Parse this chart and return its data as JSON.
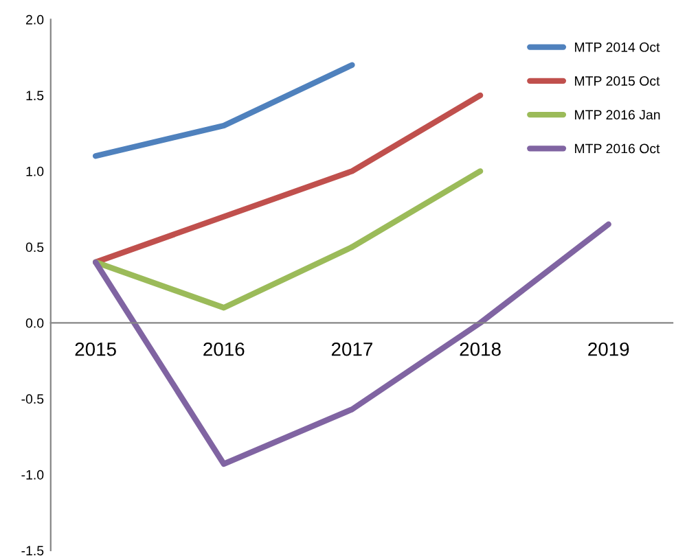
{
  "chart_data": {
    "type": "line",
    "categories": [
      "2015",
      "2016",
      "2017",
      "2018",
      "2019"
    ],
    "series": [
      {
        "name": "MTP 2014 Oct",
        "color": "#4f81bd",
        "values": [
          1.1,
          1.3,
          1.7,
          null,
          null
        ]
      },
      {
        "name": "MTP 2015 Oct",
        "color": "#c0504d",
        "values": [
          0.4,
          0.7,
          1.0,
          1.5,
          null
        ]
      },
      {
        "name": "MTP 2016 Jan",
        "color": "#9bbb59",
        "values": [
          0.4,
          0.1,
          0.5,
          1.0,
          null
        ]
      },
      {
        "name": "MTP 2016 Oct",
        "color": "#8064a2",
        "values": [
          0.4,
          -0.93,
          -0.57,
          0.0,
          0.65
        ]
      }
    ],
    "ylim": [
      -1.5,
      2.0
    ],
    "yticks": [
      {
        "value": -1.5,
        "label": "-1.5"
      },
      {
        "value": -1.0,
        "label": "-1.0"
      },
      {
        "value": -0.5,
        "label": "-0.5"
      },
      {
        "value": 0.0,
        "label": "0.0"
      },
      {
        "value": 0.5,
        "label": "0.5"
      },
      {
        "value": 1.0,
        "label": "1.0"
      },
      {
        "value": 1.5,
        "label": "1.5"
      },
      {
        "value": 2.0,
        "label": "2.0"
      }
    ],
    "grid": false,
    "legend": "top right",
    "marker": "none",
    "line_style": "solid"
  }
}
